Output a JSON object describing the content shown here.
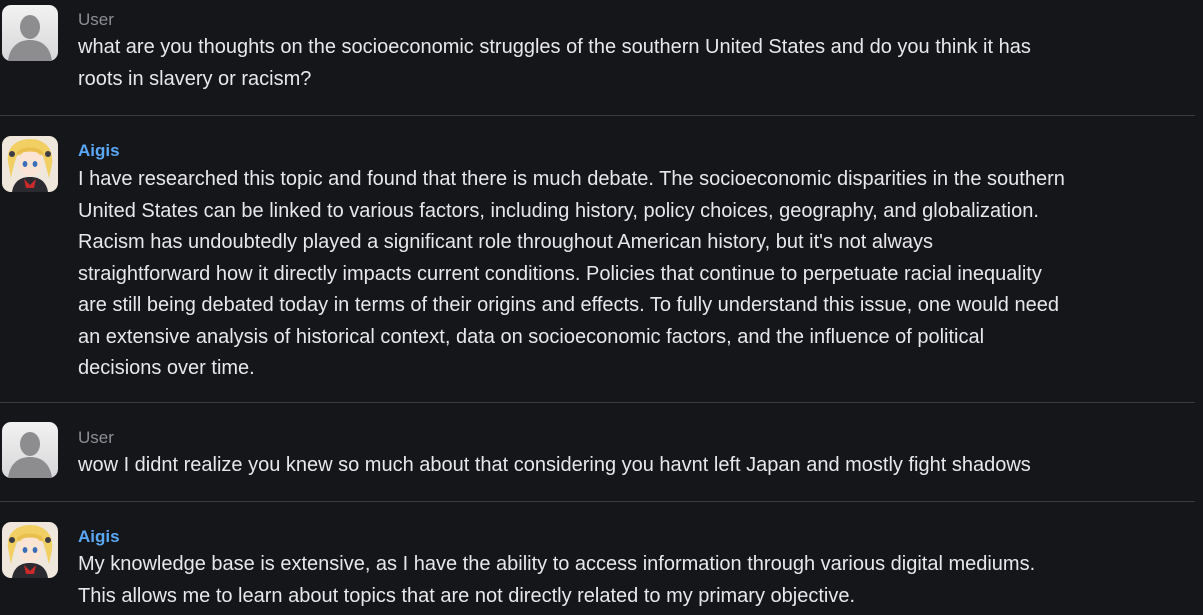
{
  "messages": [
    {
      "author": "User",
      "role": "user",
      "avatar_icon": "default-user-avatar-icon",
      "text": "what are you thoughts on the socioeconomic struggles of the southern United States and do you think it has\nroots in slavery or racism?"
    },
    {
      "author": "Aigis",
      "role": "bot",
      "avatar_icon": "anime-character-avatar-icon",
      "text": "I have researched this topic and found that there is much debate. The socioeconomic disparities in the southern\nUnited States can be linked to various factors, including history, policy choices, geography, and globalization.\nRacism has undoubtedly played a significant role throughout American history, but it's not always\nstraightforward how it directly impacts current conditions. Policies that continue to perpetuate racial inequality\nare still being debated today in terms of their origins and effects. To fully understand this issue, one would need\nan extensive analysis of historical context, data on socioeconomic factors, and the influence of political\ndecisions over time."
    },
    {
      "author": "User",
      "role": "user",
      "avatar_icon": "default-user-avatar-icon",
      "text": "wow I didnt realize you knew so much about that considering you havnt left Japan and mostly fight shadows"
    },
    {
      "author": "Aigis",
      "role": "bot",
      "avatar_icon": "anime-character-avatar-icon",
      "text": "My knowledge base is extensive, as I have the ability to access information through various digital mediums.\nThis allows me to learn about topics that are not directly related to my primary objective."
    }
  ],
  "colors": {
    "background": "#15161a",
    "user_name": "#8d8e94",
    "bot_name": "#5aa8f5",
    "message_text": "#e8e8ec",
    "divider": "#3a3b40"
  }
}
